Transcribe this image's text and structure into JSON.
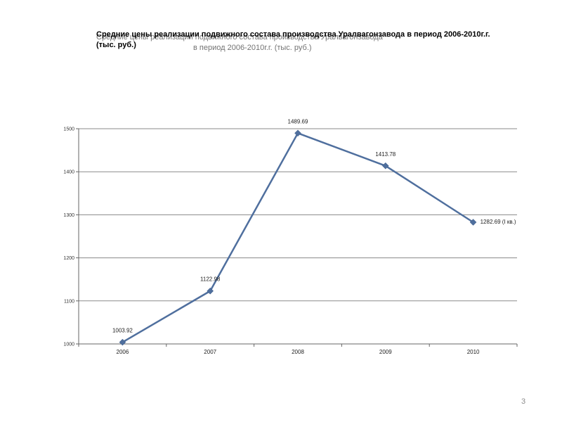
{
  "slide": {
    "title": "Средние цены реализации подвижного состава производства Уралвагонзавода в период 2006-2010г.г. (тыс. руб.)",
    "title_echo_line1": "Средние цены реализации подвижного состава производства Уралвагонзавода",
    "title_echo_line2": "в период 2006-2010г.г. (тыс. руб.)",
    "page_number": "3"
  },
  "chart_data": {
    "type": "line",
    "title": "Средние цены реализации подвижного состава производства Уралвагонзавода в период 2006-2010г.г. (тыс. руб.)",
    "xlabel": "",
    "ylabel": "",
    "categories": [
      "2006",
      "2007",
      "2008",
      "2009",
      "2010"
    ],
    "series": [
      {
        "values": [
          1003.92,
          1122.98,
          1489.69,
          1413.78,
          1282.69
        ],
        "color": "#4f6f9e"
      }
    ],
    "data_labels": [
      "1003.92",
      "1122.98",
      "1489.69",
      "1413.78",
      "1282.69"
    ],
    "last_point_suffix": "(I кв.)",
    "yticks": [
      "1000",
      "1100",
      "1200",
      "1300",
      "1400",
      "1500"
    ],
    "ylim": [
      1000,
      1500
    ],
    "grid": true,
    "legend": "none"
  }
}
